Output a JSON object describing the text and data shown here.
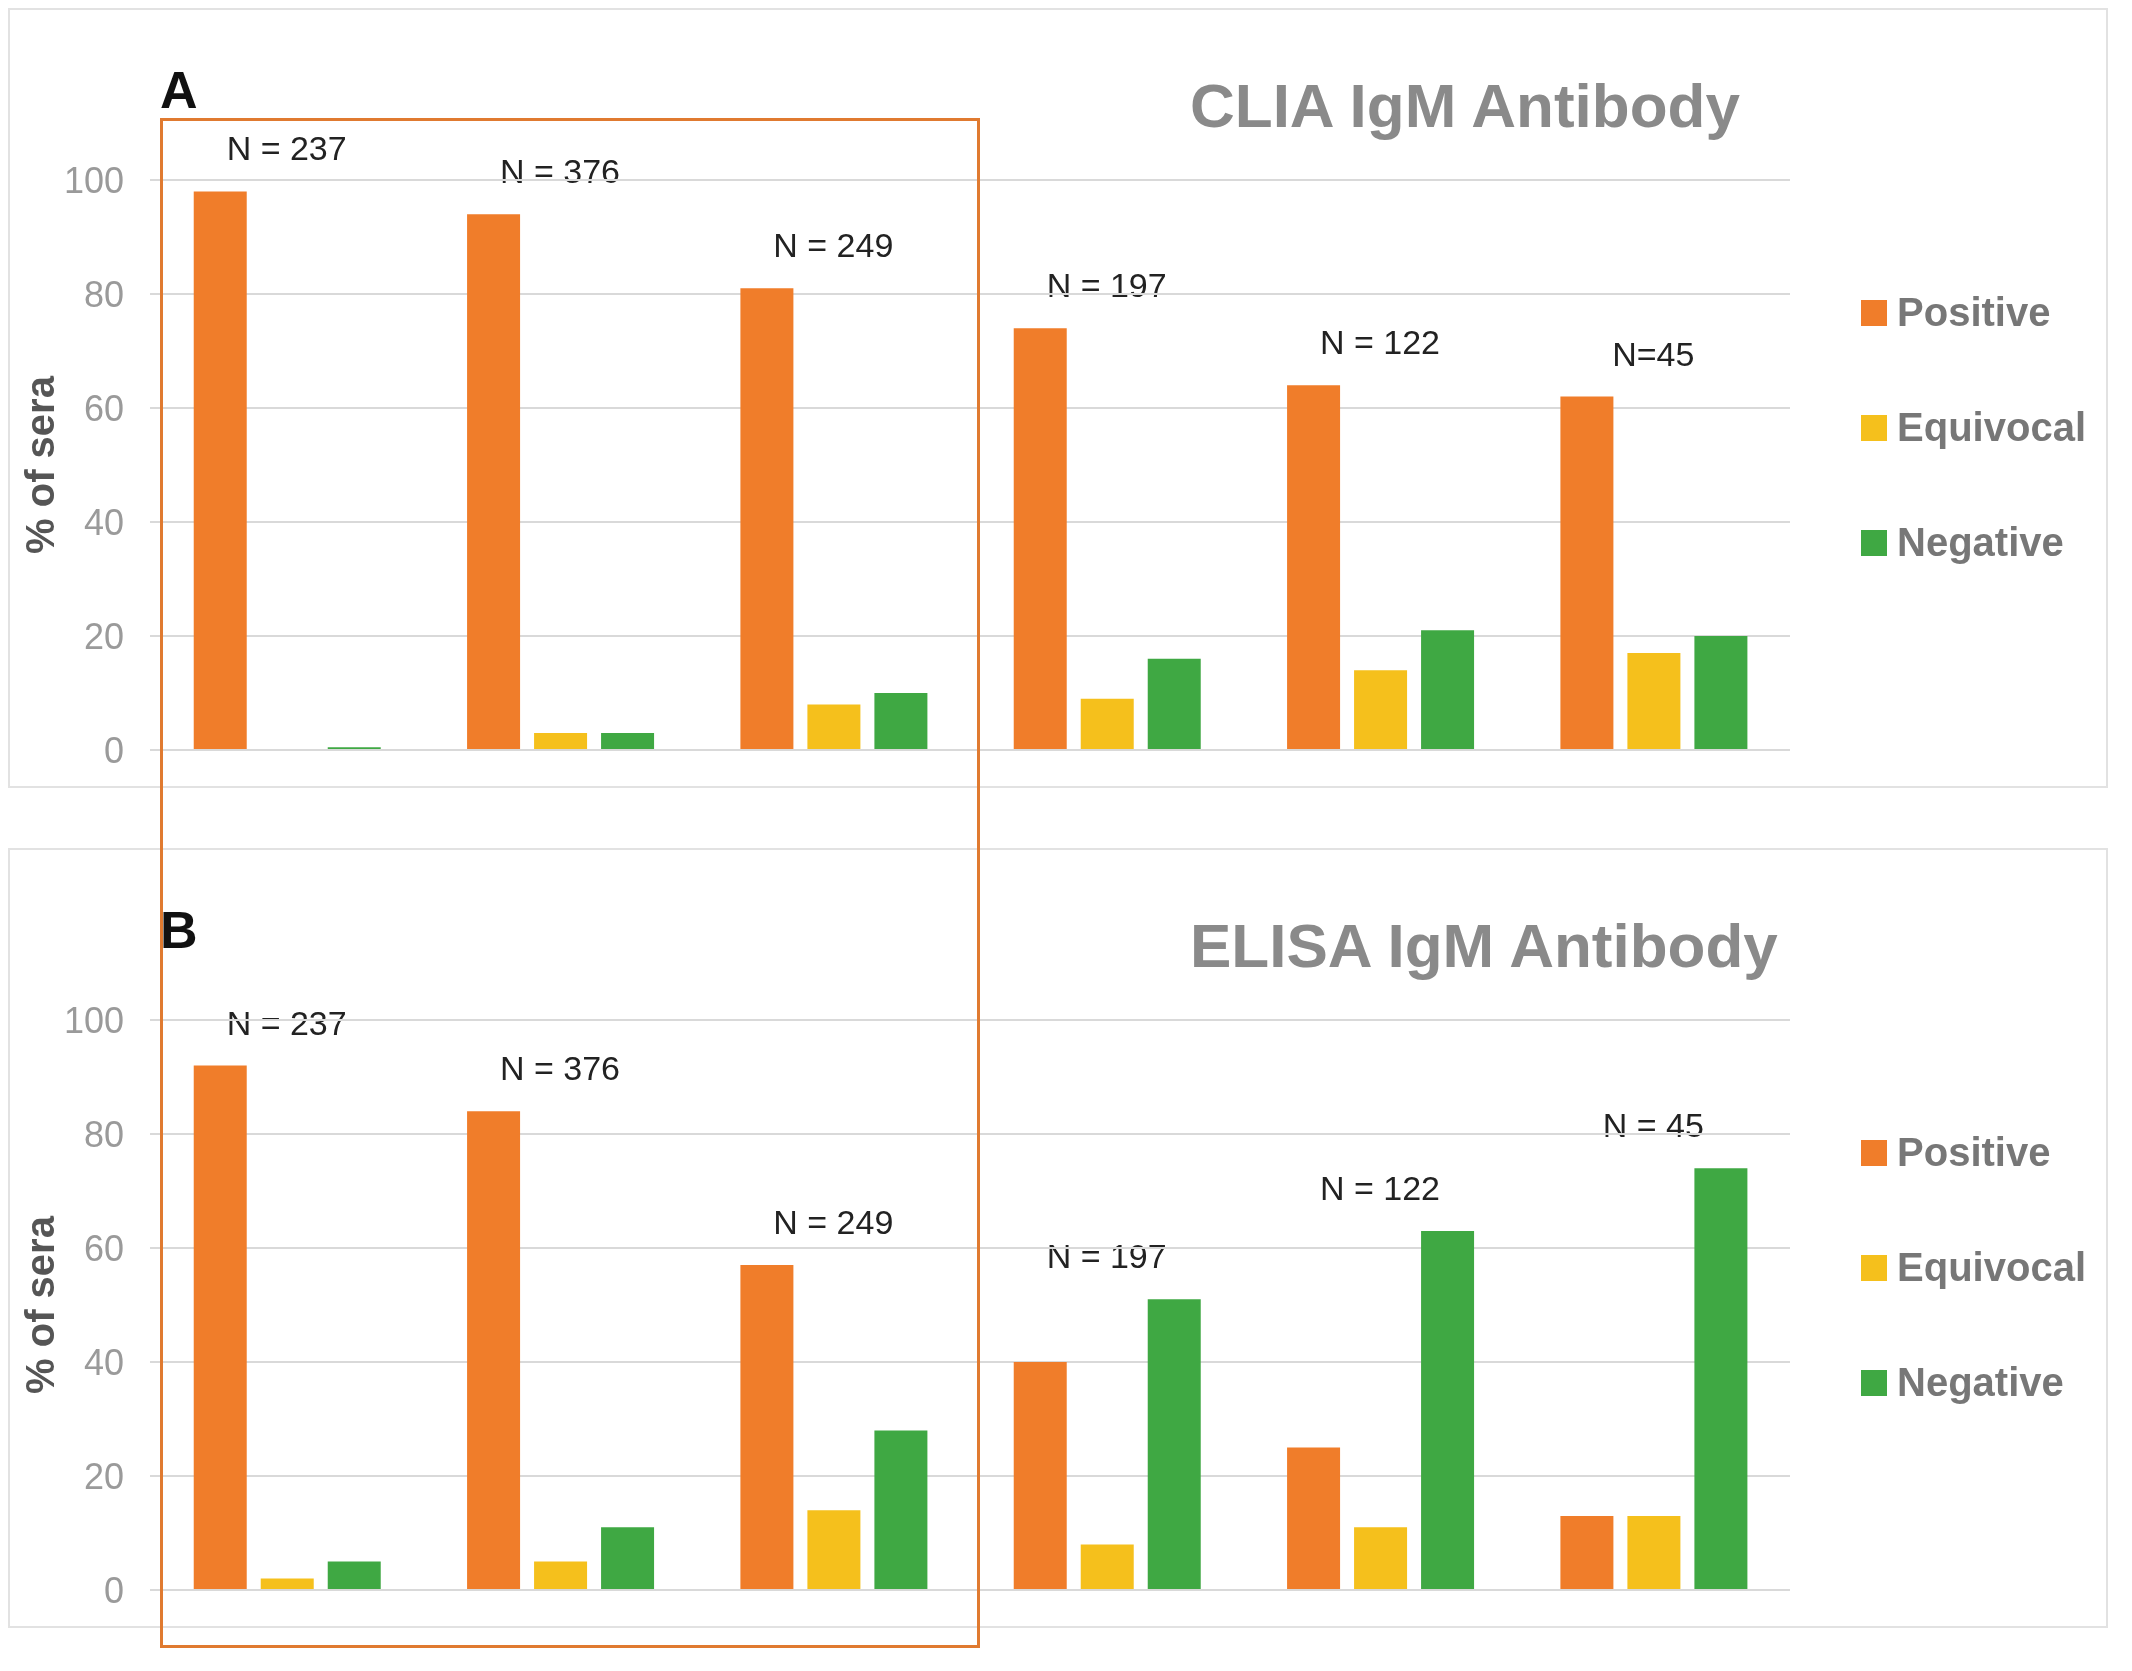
{
  "chart_data": [
    {
      "type": "bar",
      "title": "CLIA IgM Antibody",
      "ylabel": "% of sera",
      "annotations": [
        "A",
        "N = 237",
        "N = 376",
        "N = 249",
        "N = 197",
        "N = 122",
        "N=45"
      ],
      "categories": [
        null,
        null,
        null,
        null,
        null,
        null
      ],
      "series": [
        {
          "name": "Positive",
          "color": "#f07d2a",
          "values": [
            98,
            94,
            81,
            74,
            64,
            62
          ]
        },
        {
          "name": "Equivocal",
          "color": "#f5c01c",
          "values": [
            0,
            3,
            8,
            9,
            14,
            17
          ]
        },
        {
          "name": "Negative",
          "color": "#3fa843",
          "values": [
            0.5,
            3,
            10,
            16,
            21,
            20
          ]
        }
      ],
      "ylim": [
        0,
        100
      ],
      "yticks": [
        0,
        20,
        40,
        60,
        80,
        100
      ],
      "grid": "y",
      "legend": "right"
    },
    {
      "type": "bar",
      "title": "ELISA IgM Antibody",
      "ylabel": "% of sera",
      "annotations": [
        "B",
        "N = 237",
        "N = 376",
        "N = 249",
        "N = 197",
        "N = 122",
        "N = 45"
      ],
      "categories": [
        null,
        null,
        null,
        null,
        null,
        null
      ],
      "series": [
        {
          "name": "Positive",
          "color": "#f07d2a",
          "values": [
            92,
            84,
            57,
            40,
            25,
            13
          ]
        },
        {
          "name": "Equivocal",
          "color": "#f5c01c",
          "values": [
            2,
            5,
            14,
            8,
            11,
            13
          ]
        },
        {
          "name": "Negative",
          "color": "#3fa843",
          "values": [
            5,
            11,
            28,
            51,
            63,
            74
          ]
        }
      ],
      "ylim": [
        0,
        100
      ],
      "yticks": [
        0,
        20,
        40,
        60,
        80,
        100
      ],
      "grid": "y",
      "legend": "right"
    }
  ]
}
